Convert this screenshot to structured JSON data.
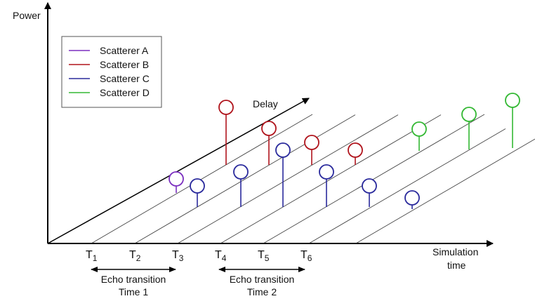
{
  "axes": {
    "y_label": "Power",
    "x_label_line1": "Simulation",
    "x_label_line2": "time",
    "delay_label": "Delay"
  },
  "legend": [
    {
      "label": "Scatterer A",
      "color": "#7b2fbf"
    },
    {
      "label": "Scatterer B",
      "color": "#b0141c"
    },
    {
      "label": "Scatterer C",
      "color": "#2a2a9c"
    },
    {
      "label": "Scatterer D",
      "color": "#33b833"
    }
  ],
  "time_ticks": [
    {
      "base": "T",
      "sub": "1"
    },
    {
      "base": "T",
      "sub": "2"
    },
    {
      "base": "T",
      "sub": "3"
    },
    {
      "base": "T",
      "sub": "4"
    },
    {
      "base": "T",
      "sub": "5"
    },
    {
      "base": "T",
      "sub": "6"
    }
  ],
  "transitions": [
    {
      "line1": "Echo transition",
      "line2": "Time 1"
    },
    {
      "line1": "Echo transition",
      "line2": "Time 2"
    }
  ]
}
